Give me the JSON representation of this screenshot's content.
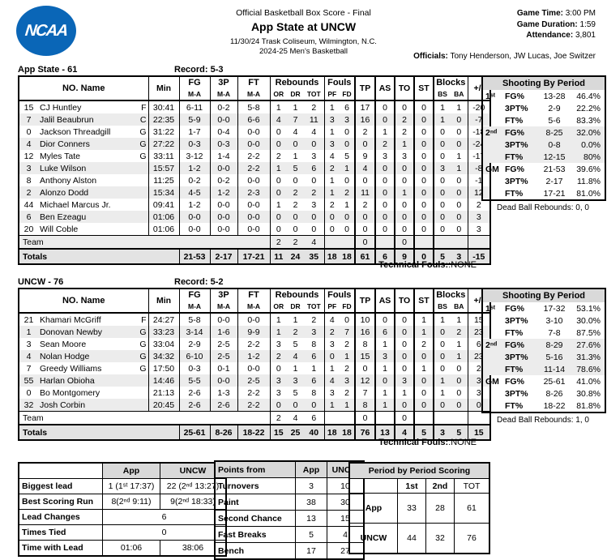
{
  "header": {
    "logo_text": "NCAA",
    "title_line1": "Official Basketball Box Score - Final",
    "title_line2": "App State at UNCW",
    "title_line3": "11/30/24 Trask Coliseum, Wilmington, N.C.",
    "title_line4": "2024-25 Men's Basketball",
    "game_info": [
      {
        "label": "Game Time:",
        "value": " 3:00 PM"
      },
      {
        "label": "Game Duration:",
        "value": " 1:59"
      },
      {
        "label": "Attendance:",
        "value": " 3,801"
      }
    ],
    "officials_label": "Officials:",
    "officials_value": " Tony Henderson, JW Lucas, Joe Switzer"
  },
  "box_columns": {
    "no_name": "NO. Name",
    "min": "Min",
    "fg": "FG",
    "p3": "3P",
    "ft": "FT",
    "ma": "M-A",
    "rebounds": "Rebounds",
    "or": "OR",
    "dr": "DR",
    "tot": "TOT",
    "fouls": "Fouls",
    "pf": "PF",
    "fd": "FD",
    "tp": "TP",
    "as": "AS",
    "to": "TO",
    "st": "ST",
    "blocks": "Blocks",
    "bs": "BS",
    "ba": "BA",
    "pm": "+/-"
  },
  "teams": [
    {
      "title": "App State - 61",
      "record": "Record: 5-3",
      "players": [
        {
          "no": "15",
          "name": "CJ Huntley",
          "pos": "F",
          "min": "30:41",
          "fg": "6-11",
          "p3": "0-2",
          "ft": "5-8",
          "or": "1",
          "dr": "1",
          "tot": "2",
          "pf": "1",
          "fd": "6",
          "tp": "17",
          "as": "0",
          "to": "0",
          "st": "0",
          "bs": "1",
          "ba": "1",
          "pm": "-20"
        },
        {
          "no": "7",
          "name": "Jalil Beaubrun",
          "pos": "C",
          "min": "22:35",
          "fg": "5-9",
          "p3": "0-0",
          "ft": "6-6",
          "or": "4",
          "dr": "7",
          "tot": "11",
          "pf": "3",
          "fd": "3",
          "tp": "16",
          "as": "0",
          "to": "2",
          "st": "0",
          "bs": "1",
          "ba": "0",
          "pm": "-7"
        },
        {
          "no": "0",
          "name": "Jackson Threadgill",
          "pos": "G",
          "min": "31:22",
          "fg": "1-7",
          "p3": "0-4",
          "ft": "0-0",
          "or": "0",
          "dr": "4",
          "tot": "4",
          "pf": "1",
          "fd": "0",
          "tp": "2",
          "as": "1",
          "to": "2",
          "st": "0",
          "bs": "0",
          "ba": "0",
          "pm": "-18"
        },
        {
          "no": "4",
          "name": "Dior Conners",
          "pos": "G",
          "min": "27:22",
          "fg": "0-3",
          "p3": "0-3",
          "ft": "0-0",
          "or": "0",
          "dr": "0",
          "tot": "0",
          "pf": "3",
          "fd": "0",
          "tp": "0",
          "as": "2",
          "to": "1",
          "st": "0",
          "bs": "0",
          "ba": "0",
          "pm": "-24"
        },
        {
          "no": "12",
          "name": "Myles Tate",
          "pos": "G",
          "min": "33:11",
          "fg": "3-12",
          "p3": "1-4",
          "ft": "2-2",
          "or": "2",
          "dr": "1",
          "tot": "3",
          "pf": "4",
          "fd": "5",
          "tp": "9",
          "as": "3",
          "to": "3",
          "st": "0",
          "bs": "0",
          "ba": "1",
          "pm": "-17"
        },
        {
          "no": "3",
          "name": "Luke Wilson",
          "pos": "",
          "min": "15:57",
          "fg": "1-2",
          "p3": "0-0",
          "ft": "2-2",
          "or": "1",
          "dr": "5",
          "tot": "6",
          "pf": "2",
          "fd": "1",
          "tp": "4",
          "as": "0",
          "to": "0",
          "st": "0",
          "bs": "3",
          "ba": "1",
          "pm": "-8"
        },
        {
          "no": "8",
          "name": "Anthony Alston",
          "pos": "",
          "min": "11:25",
          "fg": "0-2",
          "p3": "0-2",
          "ft": "0-0",
          "or": "0",
          "dr": "0",
          "tot": "0",
          "pf": "1",
          "fd": "0",
          "tp": "0",
          "as": "0",
          "to": "0",
          "st": "0",
          "bs": "0",
          "ba": "0",
          "pm": "-1"
        },
        {
          "no": "2",
          "name": "Alonzo Dodd",
          "pos": "",
          "min": "15:34",
          "fg": "4-5",
          "p3": "1-2",
          "ft": "2-3",
          "or": "0",
          "dr": "2",
          "tot": "2",
          "pf": "1",
          "fd": "2",
          "tp": "11",
          "as": "0",
          "to": "1",
          "st": "0",
          "bs": "0",
          "ba": "0",
          "pm": "12"
        },
        {
          "no": "44",
          "name": "Michael Marcus Jr.",
          "pos": "",
          "min": "09:41",
          "fg": "1-2",
          "p3": "0-0",
          "ft": "0-0",
          "or": "1",
          "dr": "2",
          "tot": "3",
          "pf": "2",
          "fd": "1",
          "tp": "2",
          "as": "0",
          "to": "0",
          "st": "0",
          "bs": "0",
          "ba": "0",
          "pm": "2"
        },
        {
          "no": "6",
          "name": "Ben Ezeagu",
          "pos": "",
          "min": "01:06",
          "fg": "0-0",
          "p3": "0-0",
          "ft": "0-0",
          "or": "0",
          "dr": "0",
          "tot": "0",
          "pf": "0",
          "fd": "0",
          "tp": "0",
          "as": "0",
          "to": "0",
          "st": "0",
          "bs": "0",
          "ba": "0",
          "pm": "3"
        },
        {
          "no": "20",
          "name": "Will Coble",
          "pos": "",
          "min": "01:06",
          "fg": "0-0",
          "p3": "0-0",
          "ft": "0-0",
          "or": "0",
          "dr": "0",
          "tot": "0",
          "pf": "0",
          "fd": "0",
          "tp": "0",
          "as": "0",
          "to": "0",
          "st": "0",
          "bs": "0",
          "ba": "0",
          "pm": "3"
        }
      ],
      "team_row": {
        "label": "Team",
        "or": "2",
        "dr": "2",
        "tot": "4",
        "tp": "0",
        "to": "0"
      },
      "totals": {
        "label": "Totals",
        "fg": "21-53",
        "p3": "2-17",
        "ft": "17-21",
        "or": "11",
        "dr": "24",
        "tot": "35",
        "pf": "18",
        "fd": "18",
        "tp": "61",
        "as": "6",
        "to": "9",
        "st": "0",
        "bs": "5",
        "ba": "3",
        "pm": "-15"
      },
      "technical_fouls_label": "Technical Fouls:",
      "technical_fouls_value": ":NONE",
      "shooting": {
        "title": "Shooting By Period",
        "rows": [
          {
            "period": "1ˢᵗ",
            "stat": "FG%",
            "ma": "13-28",
            "pct": "46.4%",
            "band": false
          },
          {
            "period": "",
            "stat": "3PT%",
            "ma": "2-9",
            "pct": "22.2%",
            "band": false
          },
          {
            "period": "",
            "stat": "FT%",
            "ma": "5-6",
            "pct": "83.3%",
            "band": false
          },
          {
            "period": "2ⁿᵈ",
            "stat": "FG%",
            "ma": "8-25",
            "pct": "32.0%",
            "band": true
          },
          {
            "period": "",
            "stat": "3PT%",
            "ma": "0-8",
            "pct": "0.0%",
            "band": true
          },
          {
            "period": "",
            "stat": "FT%",
            "ma": "12-15",
            "pct": "80%",
            "band": true
          },
          {
            "period": "GM",
            "stat": "FG%",
            "ma": "21-53",
            "pct": "39.6%",
            "band": false
          },
          {
            "period": "",
            "stat": "3PT%",
            "ma": "2-17",
            "pct": "11.8%",
            "band": false
          },
          {
            "period": "",
            "stat": "FT%",
            "ma": "17-21",
            "pct": "81.0%",
            "band": false
          }
        ],
        "dead_ball": "Dead Ball Rebounds: 0, 0"
      }
    },
    {
      "title": "UNCW - 76",
      "record": "Record: 5-2",
      "players": [
        {
          "no": "21",
          "name": "Khamari McGriff",
          "pos": "F",
          "min": "24:27",
          "fg": "5-8",
          "p3": "0-0",
          "ft": "0-0",
          "or": "1",
          "dr": "1",
          "tot": "2",
          "pf": "4",
          "fd": "0",
          "tp": "10",
          "as": "0",
          "to": "0",
          "st": "1",
          "bs": "1",
          "ba": "1",
          "pm": "15"
        },
        {
          "no": "1",
          "name": "Donovan Newby",
          "pos": "G",
          "min": "33:23",
          "fg": "3-14",
          "p3": "1-6",
          "ft": "9-9",
          "or": "1",
          "dr": "2",
          "tot": "3",
          "pf": "2",
          "fd": "7",
          "tp": "16",
          "as": "6",
          "to": "0",
          "st": "1",
          "bs": "0",
          "ba": "2",
          "pm": "23"
        },
        {
          "no": "3",
          "name": "Sean Moore",
          "pos": "G",
          "min": "33:04",
          "fg": "2-9",
          "p3": "2-5",
          "ft": "2-2",
          "or": "3",
          "dr": "5",
          "tot": "8",
          "pf": "3",
          "fd": "2",
          "tp": "8",
          "as": "1",
          "to": "0",
          "st": "2",
          "bs": "0",
          "ba": "1",
          "pm": "6"
        },
        {
          "no": "4",
          "name": "Nolan Hodge",
          "pos": "G",
          "min": "34:32",
          "fg": "6-10",
          "p3": "2-5",
          "ft": "1-2",
          "or": "2",
          "dr": "4",
          "tot": "6",
          "pf": "0",
          "fd": "1",
          "tp": "15",
          "as": "3",
          "to": "0",
          "st": "0",
          "bs": "0",
          "ba": "1",
          "pm": "23"
        },
        {
          "no": "7",
          "name": "Greedy Williams",
          "pos": "G",
          "min": "17:50",
          "fg": "0-3",
          "p3": "0-1",
          "ft": "0-0",
          "or": "0",
          "dr": "1",
          "tot": "1",
          "pf": "1",
          "fd": "2",
          "tp": "0",
          "as": "1",
          "to": "0",
          "st": "1",
          "bs": "0",
          "ba": "0",
          "pm": "2"
        },
        {
          "no": "55",
          "name": "Harlan Obioha",
          "pos": "",
          "min": "14:46",
          "fg": "5-5",
          "p3": "0-0",
          "ft": "2-5",
          "or": "3",
          "dr": "3",
          "tot": "6",
          "pf": "4",
          "fd": "3",
          "tp": "12",
          "as": "0",
          "to": "3",
          "st": "0",
          "bs": "1",
          "ba": "0",
          "pm": "3"
        },
        {
          "no": "0",
          "name": "Bo Montgomery",
          "pos": "",
          "min": "21:13",
          "fg": "2-6",
          "p3": "1-3",
          "ft": "2-2",
          "or": "3",
          "dr": "5",
          "tot": "8",
          "pf": "3",
          "fd": "2",
          "tp": "7",
          "as": "1",
          "to": "1",
          "st": "0",
          "bs": "1",
          "ba": "0",
          "pm": "3"
        },
        {
          "no": "32",
          "name": "Josh Corbin",
          "pos": "",
          "min": "20:45",
          "fg": "2-6",
          "p3": "2-6",
          "ft": "2-2",
          "or": "0",
          "dr": "0",
          "tot": "0",
          "pf": "1",
          "fd": "1",
          "tp": "8",
          "as": "1",
          "to": "0",
          "st": "0",
          "bs": "0",
          "ba": "0",
          "pm": "0"
        }
      ],
      "team_row": {
        "label": "Team",
        "or": "2",
        "dr": "4",
        "tot": "6",
        "tp": "0",
        "to": "0"
      },
      "totals": {
        "label": "Totals",
        "fg": "25-61",
        "p3": "8-26",
        "ft": "18-22",
        "or": "15",
        "dr": "25",
        "tot": "40",
        "pf": "18",
        "fd": "18",
        "tp": "76",
        "as": "13",
        "to": "4",
        "st": "5",
        "bs": "3",
        "ba": "5",
        "pm": "15"
      },
      "technical_fouls_label": "Technical Fouls:",
      "technical_fouls_value": ":NONE",
      "shooting": {
        "title": "Shooting By Period",
        "rows": [
          {
            "period": "1ˢᵗ",
            "stat": "FG%",
            "ma": "17-32",
            "pct": "53.1%",
            "band": false
          },
          {
            "period": "",
            "stat": "3PT%",
            "ma": "3-10",
            "pct": "30.0%",
            "band": false
          },
          {
            "period": "",
            "stat": "FT%",
            "ma": "7-8",
            "pct": "87.5%",
            "band": false
          },
          {
            "period": "2ⁿᵈ",
            "stat": "FG%",
            "ma": "8-29",
            "pct": "27.6%",
            "band": true
          },
          {
            "period": "",
            "stat": "3PT%",
            "ma": "5-16",
            "pct": "31.3%",
            "band": true
          },
          {
            "period": "",
            "stat": "FT%",
            "ma": "11-14",
            "pct": "78.6%",
            "band": true
          },
          {
            "period": "GM",
            "stat": "FG%",
            "ma": "25-61",
            "pct": "41.0%",
            "band": false
          },
          {
            "period": "",
            "stat": "3PT%",
            "ma": "8-26",
            "pct": "30.8%",
            "band": false
          },
          {
            "period": "",
            "stat": "FT%",
            "ma": "18-22",
            "pct": "81.8%",
            "band": false
          }
        ],
        "dead_ball": "Dead Ball Rebounds: 1, 0"
      }
    }
  ],
  "bottom": {
    "lead_stats": {
      "col_app": "App",
      "col_uncw": "UNCW",
      "biggest_lead": {
        "label": "Biggest lead",
        "app": "1 (1ˢᵗ 17:37)",
        "uncw": "22 (2ⁿᵈ 13:27)"
      },
      "best_run": {
        "label": "Best Scoring Run",
        "app": "8(2ⁿᵈ 9:11)",
        "uncw": "9(2ⁿᵈ 18:33)"
      },
      "lead_changes": {
        "label": "Lead Changes",
        "value": "6"
      },
      "times_tied": {
        "label": "Times Tied",
        "value": "0"
      },
      "time_with_lead": {
        "label": "Time with Lead",
        "app": "01:06",
        "uncw": "38:06"
      }
    },
    "points_from": {
      "title": "Points from",
      "col_app": "App",
      "col_uncw": "UNCW",
      "rows": [
        {
          "label": "Turnovers",
          "app": "3",
          "uncw": "10"
        },
        {
          "label": "Paint",
          "app": "38",
          "uncw": "30"
        },
        {
          "label": "Second Chance",
          "app": "13",
          "uncw": "15"
        },
        {
          "label": "Fast Breaks",
          "app": "5",
          "uncw": "4"
        },
        {
          "label": "Bench",
          "app": "17",
          "uncw": "27"
        }
      ]
    },
    "period_scoring": {
      "title": "Period by Period Scoring",
      "cols": [
        "1st",
        "2nd",
        "TOT"
      ],
      "rows": [
        {
          "label": "App",
          "values": [
            "33",
            "28",
            "61"
          ]
        },
        {
          "label": "UNCW",
          "values": [
            "44",
            "32",
            "76"
          ]
        }
      ]
    }
  },
  "chart_data": {
    "type": "table",
    "title": "Period by Period Scoring",
    "categories": [
      "1st",
      "2nd",
      "TOT"
    ],
    "series": [
      {
        "name": "App",
        "values": [
          33,
          28,
          61
        ]
      },
      {
        "name": "UNCW",
        "values": [
          44,
          32,
          76
        ]
      }
    ]
  },
  "colors": {
    "ncaa_blue": "#0a66b7",
    "header_gray": "#d9d9d9",
    "band_gray": "#ececec"
  }
}
